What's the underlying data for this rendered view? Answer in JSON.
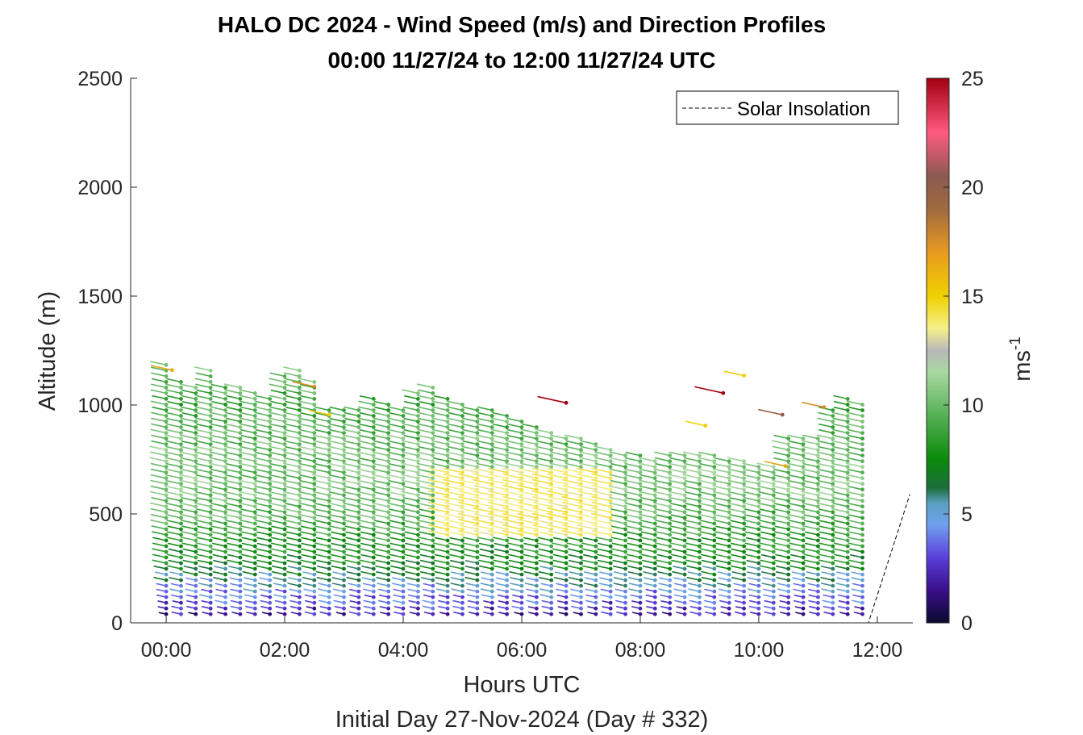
{
  "chart_data": {
    "type": "wind-barb-profile",
    "title_line1": "HALO DC 2024 - Wind Speed (m/s) and Direction Profiles",
    "title_line2": "00:00 11/27/24 to 12:00 11/27/24  UTC",
    "xlabel": "Hours UTC",
    "xsublabel": "Initial Day 27-Nov-2024 (Day # 332)",
    "ylabel": "Altitude (m)",
    "xlim_hours": [
      -0.6,
      12.6
    ],
    "ylim": [
      0,
      2500
    ],
    "xticks": [
      {
        "hour": 0,
        "label": "00:00"
      },
      {
        "hour": 2,
        "label": "02:00"
      },
      {
        "hour": 4,
        "label": "04:00"
      },
      {
        "hour": 6,
        "label": "06:00"
      },
      {
        "hour": 8,
        "label": "08:00"
      },
      {
        "hour": 10,
        "label": "10:00"
      },
      {
        "hour": 12,
        "label": "12:00"
      }
    ],
    "yticks": [
      {
        "value": 0,
        "label": "0"
      },
      {
        "value": 500,
        "label": "500"
      },
      {
        "value": 1000,
        "label": "1000"
      },
      {
        "value": 1500,
        "label": "1500"
      },
      {
        "value": 2000,
        "label": "2000"
      },
      {
        "value": 2500,
        "label": "2500"
      }
    ],
    "legend": {
      "entry": "Solar Insolation",
      "placement": "top-right"
    },
    "colorbar": {
      "label": "ms",
      "label_exponent": "-1",
      "range": [
        0,
        25
      ],
      "ticks": [
        {
          "value": 0,
          "label": "0"
        },
        {
          "value": 5,
          "label": "5"
        },
        {
          "value": 10,
          "label": "10"
        },
        {
          "value": 15,
          "label": "15"
        },
        {
          "value": 20,
          "label": "20"
        },
        {
          "value": 25,
          "label": "25"
        }
      ],
      "color_stops": [
        {
          "v": 0,
          "c": "#0a0a2e"
        },
        {
          "v": 1.5,
          "c": "#3a0f8a"
        },
        {
          "v": 3.0,
          "c": "#5a3fd8"
        },
        {
          "v": 4.5,
          "c": "#6fa0f0"
        },
        {
          "v": 5.5,
          "c": "#5aa0c0"
        },
        {
          "v": 6.2,
          "c": "#1c6e3a"
        },
        {
          "v": 7.5,
          "c": "#0a8a0a"
        },
        {
          "v": 9.5,
          "c": "#55b055"
        },
        {
          "v": 11.5,
          "c": "#a8d8a0"
        },
        {
          "v": 12.5,
          "c": "#b8b8b8"
        },
        {
          "v": 13.5,
          "c": "#f5f08a"
        },
        {
          "v": 15,
          "c": "#f0d000"
        },
        {
          "v": 17,
          "c": "#e89a20"
        },
        {
          "v": 19,
          "c": "#a06a40"
        },
        {
          "v": 20.5,
          "c": "#8a5a50"
        },
        {
          "v": 22.5,
          "c": "#ff5a80"
        },
        {
          "v": 25,
          "c": "#a00010"
        }
      ]
    },
    "profiles": {
      "start_hour": 0.0,
      "end_hour": 11.75,
      "interval_hours": 0.25,
      "min_altitude_m": 40,
      "level_spacing_m": 26,
      "top_altitude_m": [
        1190,
        1120,
        1100,
        1180,
        1090,
        1080,
        1060,
        1050,
        1150,
        1180,
        1120,
        1000,
        1000,
        1000,
        1040,
        1020,
        1000,
        1060,
        1080,
        1050,
        1020,
        1000,
        990,
        960,
        930,
        900,
        880,
        860,
        850,
        820,
        800,
        780,
        770,
        760,
        770,
        780,
        770,
        770,
        750,
        760,
        740,
        720,
        850,
        850,
        870,
        1000,
        1040,
        1020
      ],
      "arrow_direction_deg_from_north": 300,
      "speed_profile": [
        {
          "z": 40,
          "speed": 2.0
        },
        {
          "z": 100,
          "speed": 3.5
        },
        {
          "z": 180,
          "speed": 5.0
        },
        {
          "z": 260,
          "speed": 7.2
        },
        {
          "z": 400,
          "speed": 8.5
        },
        {
          "z": 600,
          "speed": 10.5
        },
        {
          "z": 800,
          "speed": 10.0
        },
        {
          "z": 1000,
          "speed": 9.0
        },
        {
          "z": 1200,
          "speed": 10.0
        }
      ],
      "high_speed_region": {
        "hours": [
          4.75,
          7.5
        ],
        "altitude_m": [
          380,
          700
        ],
        "speed": 13.8
      },
      "isolated_barbs": [
        {
          "hour": 0.1,
          "z": 1160,
          "speed": 16.5
        },
        {
          "hour": 2.5,
          "z": 1085,
          "speed": 17.5
        },
        {
          "hour": 2.75,
          "z": 955,
          "speed": 15.0
        },
        {
          "hour": 6.75,
          "z": 1010,
          "speed": 25.0
        },
        {
          "hour": 9.1,
          "z": 905,
          "speed": 15.0
        },
        {
          "hour": 9.4,
          "z": 1055,
          "speed": 25.0
        },
        {
          "hour": 9.75,
          "z": 1135,
          "speed": 15.0
        },
        {
          "hour": 10.4,
          "z": 955,
          "speed": 20.0
        },
        {
          "hour": 10.45,
          "z": 720,
          "speed": 16.5
        },
        {
          "hour": 11.1,
          "z": 990,
          "speed": 17.5
        }
      ]
    },
    "solar_insolation_curve": [
      {
        "hour": -0.6,
        "value_m": 0
      },
      {
        "hour": 11.85,
        "value_m": 0
      },
      {
        "hour": 12.55,
        "value_m": 590
      }
    ]
  }
}
